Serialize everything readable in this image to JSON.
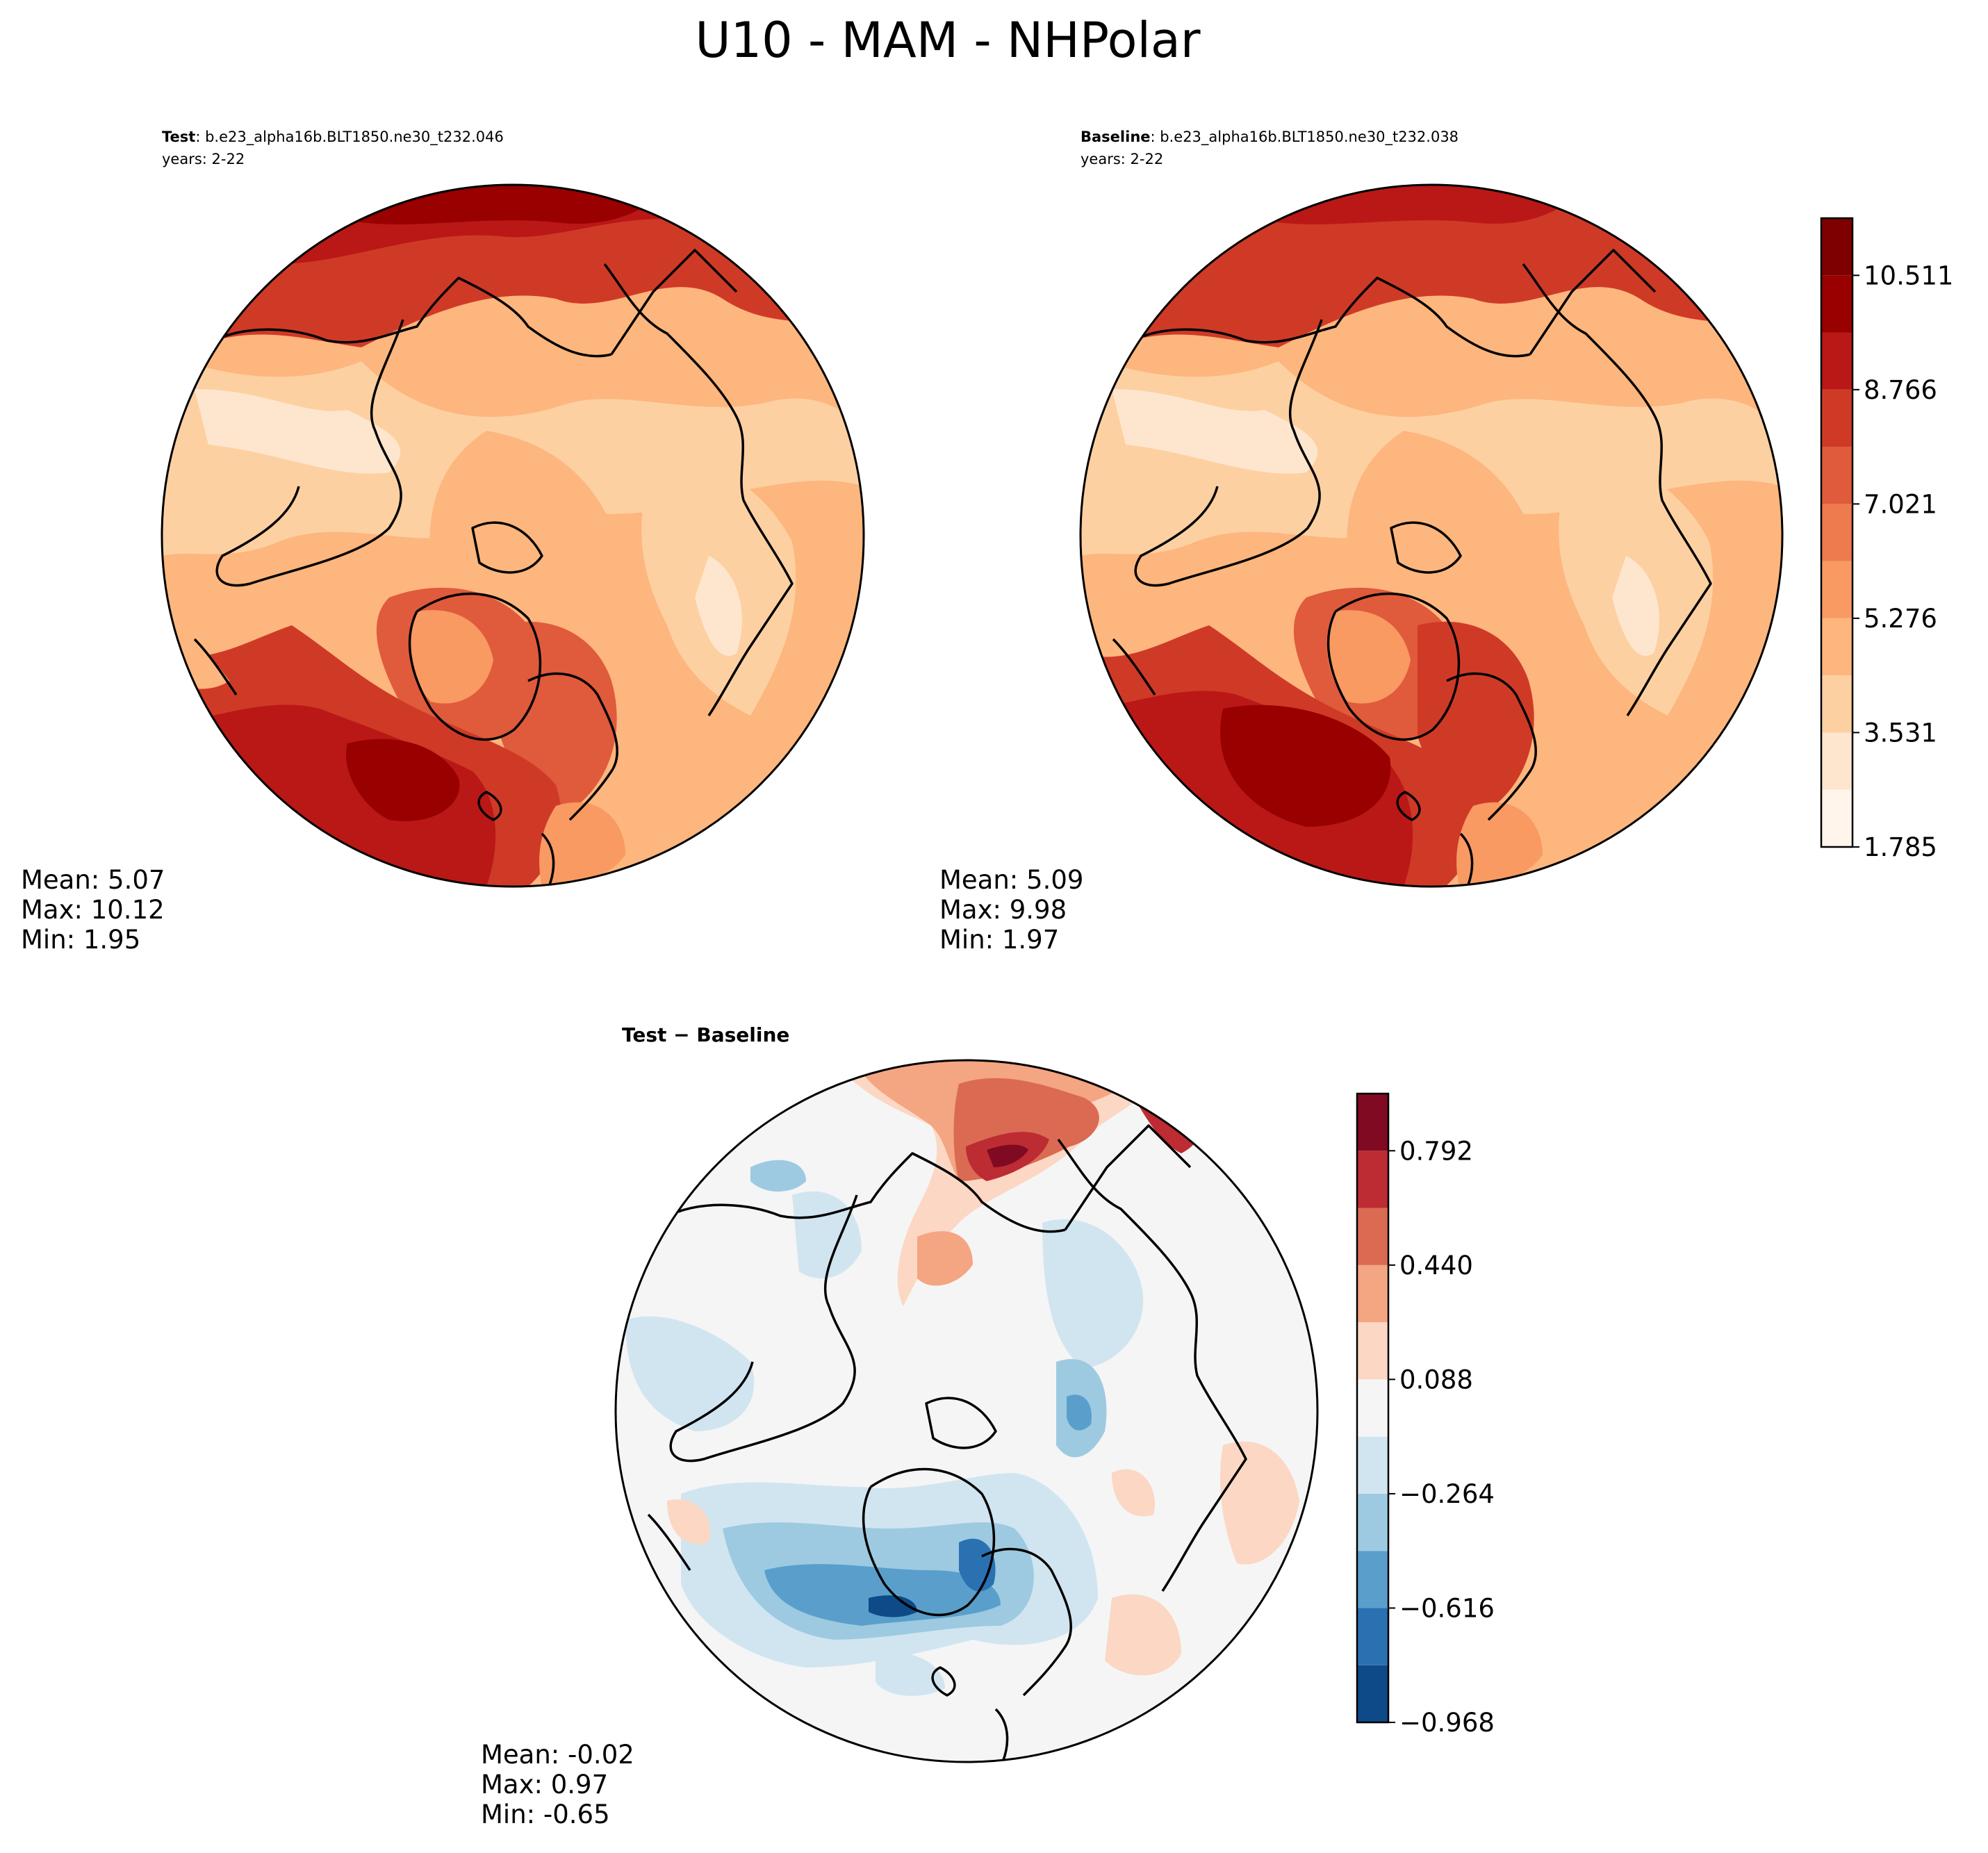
{
  "figure": {
    "title": "U10 - MAM - NHPolar"
  },
  "panels": [
    {
      "id": "test",
      "label": "Test",
      "case": ": b.e23_alpha16b.BLT1850.ne30_t232.046",
      "years": "years: 2-22",
      "stats": {
        "mean": "Mean:  5.07",
        "max": "Max: 10.12",
        "min": "Min:  1.95"
      }
    },
    {
      "id": "baseline",
      "label": "Baseline",
      "case": ": b.e23_alpha16b.BLT1850.ne30_t232.038",
      "years": "years: 2-22",
      "stats": {
        "mean": "Mean:  5.09",
        "max": "Max:  9.98",
        "min": "Min:  1.97"
      }
    },
    {
      "id": "diff",
      "label": "Test − Baseline",
      "stats": {
        "mean": "Mean: -0.02",
        "max": "Max:  0.97",
        "min": "Min: -0.65"
      }
    }
  ],
  "chart_data": [
    {
      "type": "heatmap",
      "title": "Test",
      "projection": "north polar stereographic",
      "variable": "U10",
      "season": "MAM",
      "mean": 5.07,
      "max": 10.12,
      "min": 1.95,
      "colormap": "OrRd-like sequential",
      "contour_levels": [
        1.785,
        2.658,
        3.531,
        4.403,
        5.276,
        6.149,
        7.021,
        7.894,
        8.766,
        9.639,
        10.511,
        11.384
      ],
      "colorbar_ticks": [
        "1.785",
        "3.531",
        "5.276",
        "7.021",
        "8.766",
        "10.511"
      ]
    },
    {
      "type": "heatmap",
      "title": "Baseline",
      "projection": "north polar stereographic",
      "variable": "U10",
      "season": "MAM",
      "mean": 5.09,
      "max": 9.98,
      "min": 1.97,
      "colormap": "OrRd-like sequential",
      "contour_levels": [
        1.785,
        2.658,
        3.531,
        4.403,
        5.276,
        6.149,
        7.021,
        7.894,
        8.766,
        9.639,
        10.511,
        11.384
      ]
    },
    {
      "type": "heatmap",
      "title": "Test − Baseline",
      "projection": "north polar stereographic",
      "mean": -0.02,
      "max": 0.97,
      "min": -0.65,
      "colormap": "RdBu_r diverging",
      "contour_levels": [
        -0.968,
        -0.792,
        -0.616,
        -0.44,
        -0.264,
        -0.088,
        0.088,
        0.264,
        0.44,
        0.616,
        0.792,
        0.968
      ],
      "colorbar_ticks": [
        "−0.968",
        "−0.616",
        "−0.264",
        "0.088",
        "0.440",
        "0.792"
      ]
    }
  ],
  "colors": {
    "seq": [
      "#fff5eb",
      "#fee6ce",
      "#fdd0a2",
      "#fdb67d",
      "#f89a62",
      "#ee7b4d",
      "#e05a3c",
      "#cf3a27",
      "#b91816",
      "#990000",
      "#7f0000"
    ],
    "div": [
      "#0d4a87",
      "#2a71b2",
      "#5a9fcb",
      "#9dcae1",
      "#d1e5f0",
      "#f5f5f5",
      "#fbd7c4",
      "#f4a582",
      "#db6a52",
      "#bd2b33",
      "#7f0a22"
    ]
  }
}
